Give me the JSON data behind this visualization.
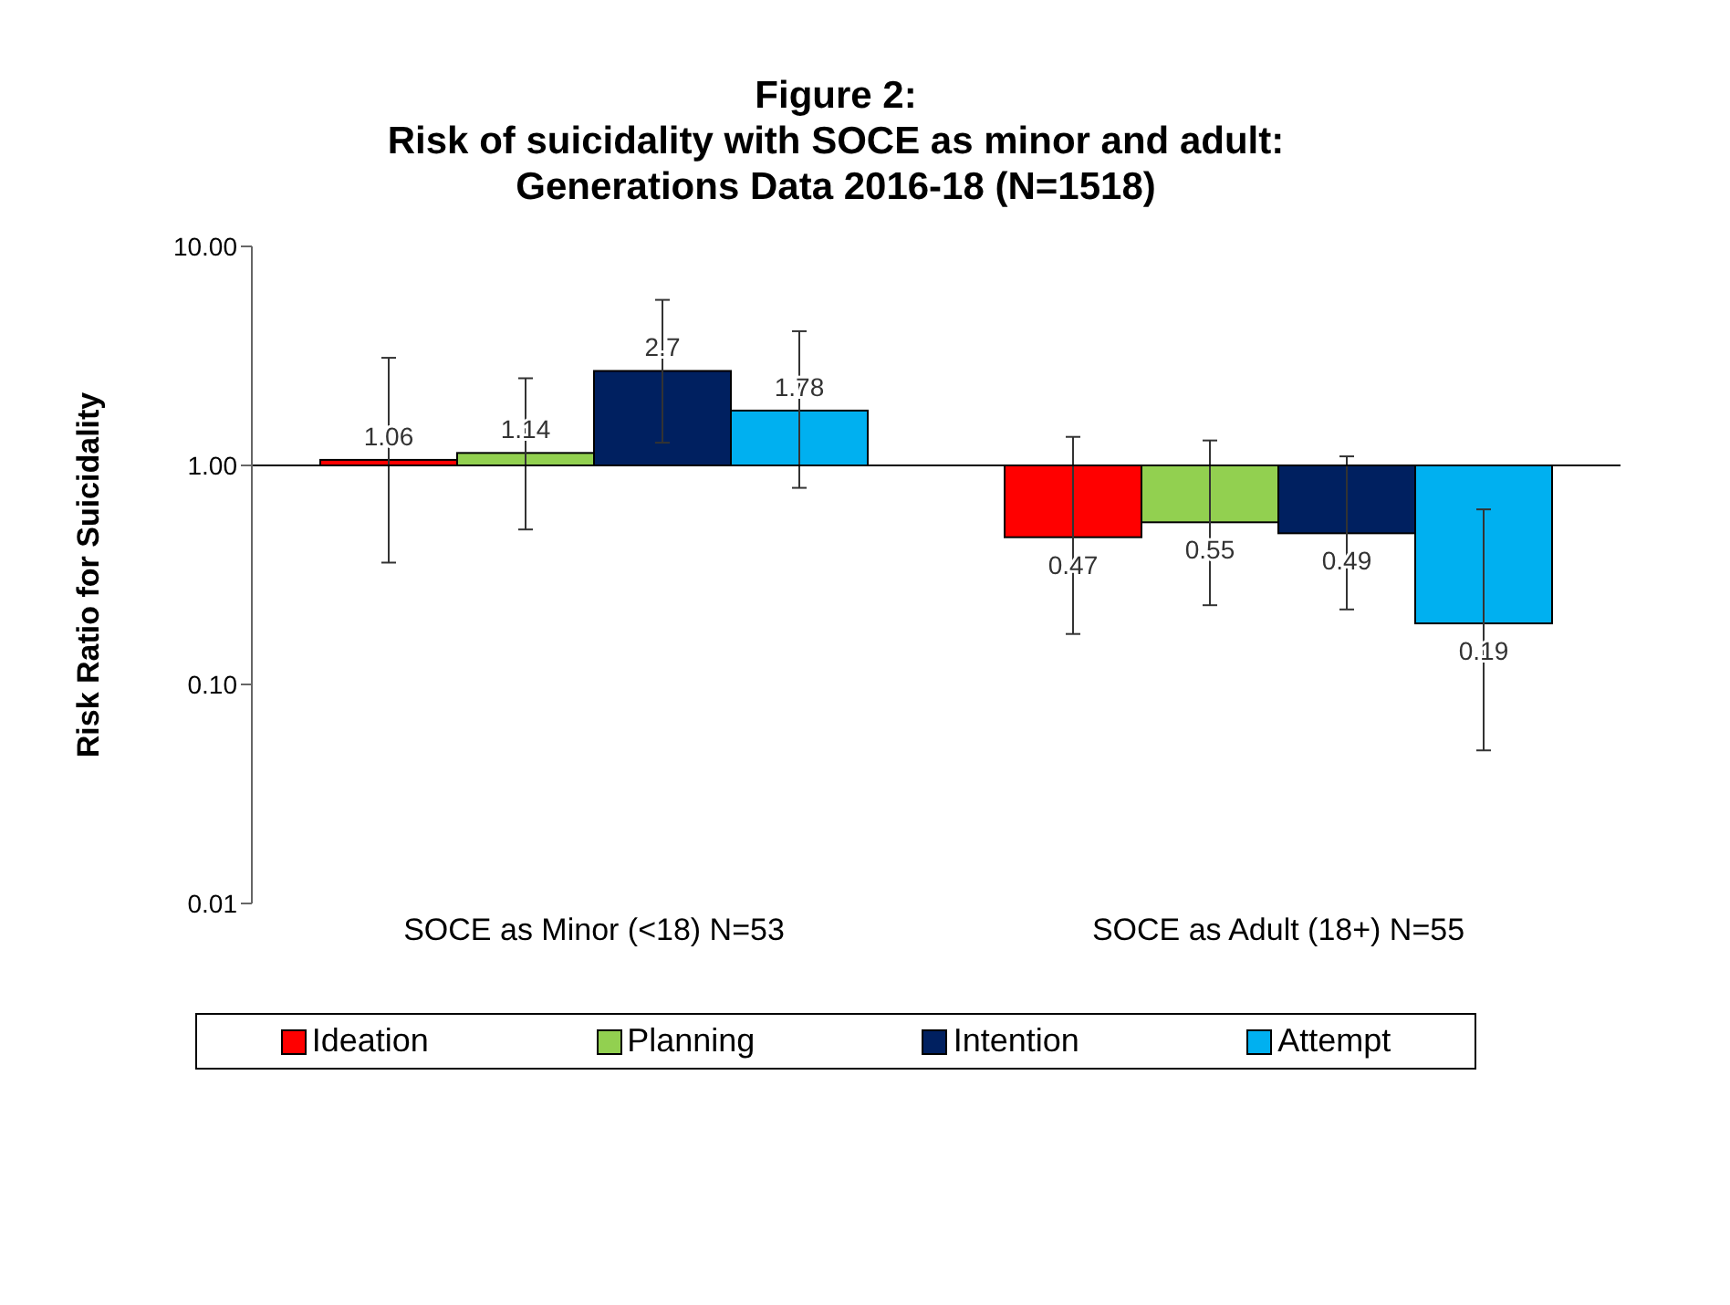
{
  "chart_data": {
    "type": "bar",
    "title": "Figure 2:\nRisk of suicidality with SOCE as minor and adult:\nGenerations Data 2016-18 (N=1518)",
    "ylabel": "Risk  Ratio for Suicidality",
    "categories": [
      "SOCE as Minor (<18) N=53",
      "SOCE as Adult (18+) N=55"
    ],
    "series": [
      {
        "name": "Ideation",
        "color": "#ff0000",
        "base": [
          1,
          1
        ],
        "values": [
          0.06,
          -0.53
        ],
        "value_labels": [
          "1.06",
          "0.47"
        ],
        "errors": [
          [
            0.36,
            3.1
          ],
          [
            0.17,
            1.35
          ]
        ]
      },
      {
        "name": "Planning",
        "color": "#92d050",
        "base": [
          1,
          1
        ],
        "values": [
          0.14,
          -0.45
        ],
        "value_labels": [
          "1.14",
          "0.55"
        ],
        "errors": [
          [
            0.51,
            2.5
          ],
          [
            0.23,
            1.3
          ]
        ]
      },
      {
        "name": "Intention",
        "color": "#002060",
        "base": [
          1,
          1
        ],
        "values": [
          1.7,
          -0.51
        ],
        "value_labels": [
          "2.7",
          "0.49"
        ],
        "errors": [
          [
            1.27,
            5.7
          ],
          [
            0.22,
            1.1
          ]
        ]
      },
      {
        "name": "Attempt",
        "color": "#00b0f0",
        "base": [
          1,
          1
        ],
        "values": [
          0.78,
          -0.81
        ],
        "value_labels": [
          "1.78",
          "0.19"
        ],
        "errors": [
          [
            0.79,
            4.1
          ],
          [
            0.05,
            0.63
          ]
        ]
      }
    ],
    "log": "y",
    "ylim": [
      0.01,
      10
    ],
    "yticks": [
      {
        "value": 0.01,
        "label": "0.01"
      },
      {
        "value": 0.1,
        "label": "0.10"
      },
      {
        "value": 1,
        "label": "1.00"
      },
      {
        "value": 10,
        "label": "10.00"
      }
    ],
    "ref_lines": [
      {
        "axis": "y",
        "value": 1
      }
    ],
    "grid": false,
    "legend": "bottom"
  }
}
